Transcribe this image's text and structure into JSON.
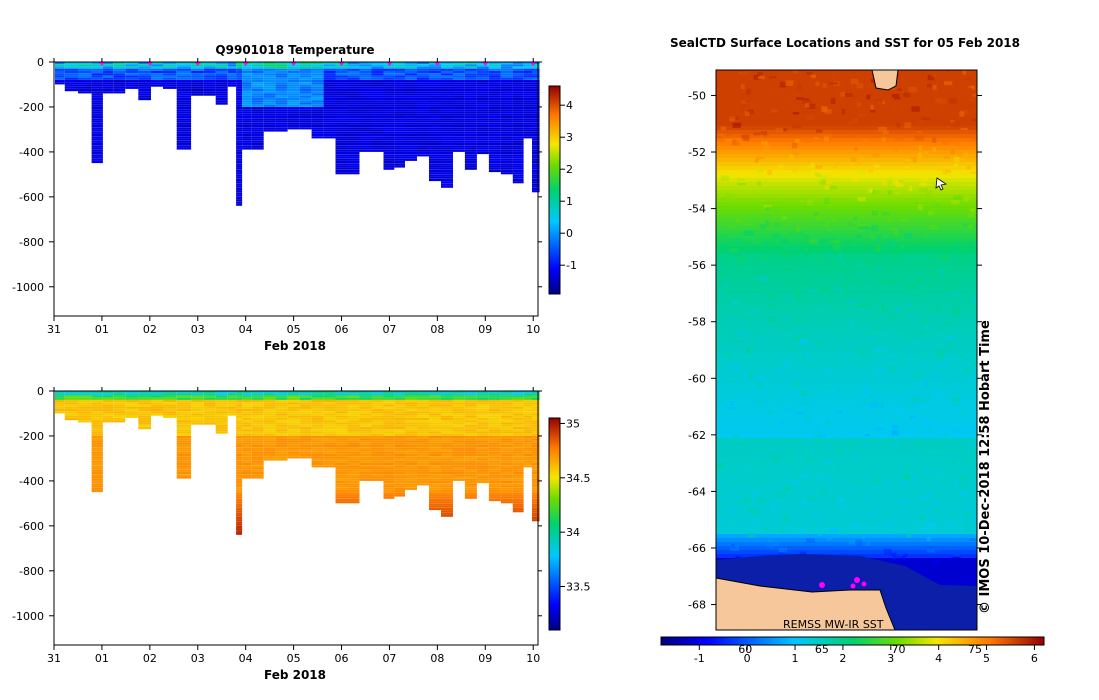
{
  "chart_data": [
    {
      "type": "heatmap",
      "title": "Q9901018  Temperature",
      "xlabel": "Feb 2018",
      "x_ticks": [
        "31",
        "01",
        "02",
        "03",
        "04",
        "05",
        "06",
        "07",
        "08",
        "09",
        "10"
      ],
      "x_range_days": [
        0,
        10.1
      ],
      "y_ticks": [
        "0",
        "-200",
        "-400",
        "-600",
        "-800",
        "-1000"
      ],
      "ylim": [
        -1130,
        0
      ],
      "colorbar": {
        "min": -1.9,
        "max": 4.6,
        "ticks": [
          "4",
          "3",
          "2",
          "1",
          "0",
          "-1"
        ]
      },
      "profiles": [
        {
          "t": 0.1,
          "d": 100
        },
        {
          "t": 0.35,
          "d": 130
        },
        {
          "t": 0.65,
          "d": 140
        },
        {
          "t": 0.92,
          "d": 450
        },
        {
          "t": 1.12,
          "d": 140
        },
        {
          "t": 1.35,
          "d": 140
        },
        {
          "t": 1.62,
          "d": 120
        },
        {
          "t": 1.9,
          "d": 170
        },
        {
          "t": 2.15,
          "d": 110
        },
        {
          "t": 2.4,
          "d": 120
        },
        {
          "t": 2.72,
          "d": 390
        },
        {
          "t": 3.0,
          "d": 150
        },
        {
          "t": 3.25,
          "d": 150
        },
        {
          "t": 3.5,
          "d": 190
        },
        {
          "t": 3.75,
          "d": 110
        },
        {
          "t": 3.85,
          "d": 640
        },
        {
          "t": 4.0,
          "d": 390
        },
        {
          "t": 4.25,
          "d": 390
        },
        {
          "t": 4.5,
          "d": 310
        },
        {
          "t": 4.75,
          "d": 310
        },
        {
          "t": 5.0,
          "d": 300
        },
        {
          "t": 5.25,
          "d": 300
        },
        {
          "t": 5.5,
          "d": 340
        },
        {
          "t": 5.75,
          "d": 340
        },
        {
          "t": 6.0,
          "d": 500
        },
        {
          "t": 6.25,
          "d": 500
        },
        {
          "t": 6.5,
          "d": 400
        },
        {
          "t": 6.75,
          "d": 400
        },
        {
          "t": 7.0,
          "d": 480
        },
        {
          "t": 7.2,
          "d": 470
        },
        {
          "t": 7.45,
          "d": 440
        },
        {
          "t": 7.7,
          "d": 420
        },
        {
          "t": 7.95,
          "d": 530
        },
        {
          "t": 8.2,
          "d": 560
        },
        {
          "t": 8.45,
          "d": 400
        },
        {
          "t": 8.7,
          "d": 480
        },
        {
          "t": 8.95,
          "d": 410
        },
        {
          "t": 9.2,
          "d": 490
        },
        {
          "t": 9.45,
          "d": 500
        },
        {
          "t": 9.7,
          "d": 540
        },
        {
          "t": 9.9,
          "d": 340
        },
        {
          "t": 10.05,
          "d": 580
        }
      ],
      "surface_markers_days": [
        1.0,
        2.0,
        3.0,
        4.0,
        5.0,
        6.0,
        7.0,
        8.0,
        9.0,
        10.0
      ]
    },
    {
      "type": "heatmap",
      "title": "",
      "xlabel": "Feb 2018",
      "x_ticks": [
        "31",
        "01",
        "02",
        "03",
        "04",
        "05",
        "06",
        "07",
        "08",
        "09",
        "10"
      ],
      "x_range_days": [
        0,
        10.1
      ],
      "y_ticks": [
        "0",
        "-200",
        "-400",
        "-600",
        "-800",
        "-1000"
      ],
      "ylim": [
        -1130,
        0
      ],
      "colorbar": {
        "min": 33.1,
        "max": 35.05,
        "ticks": [
          "35",
          "34.5",
          "34",
          "33.5"
        ]
      }
    },
    {
      "type": "heatmap",
      "title": "SealCTD Surface Locations and SST for 05 Feb 2018",
      "y_ticks": [
        "-50",
        "-52",
        "-54",
        "-56",
        "-58",
        "-60",
        "-62",
        "-64",
        "-66",
        "-68"
      ],
      "lat_range": [
        -68.9,
        -49.1
      ],
      "colorbar": {
        "min": -1.8,
        "max": 6.2,
        "ticks_bottom": [
          "-1",
          "0",
          "1",
          "2",
          "3",
          "4",
          "5",
          "6"
        ],
        "ticks_overlay": [
          "60",
          "65",
          "70",
          "75"
        ]
      },
      "credit": "REMSS MW-IR SST",
      "vertical_label": "© IMOS 10-Dec-2018 12:58 Hobart Time"
    }
  ],
  "colors": {
    "land": "#f5c79a",
    "marker": "#ff00ff",
    "axis": "#000000"
  }
}
